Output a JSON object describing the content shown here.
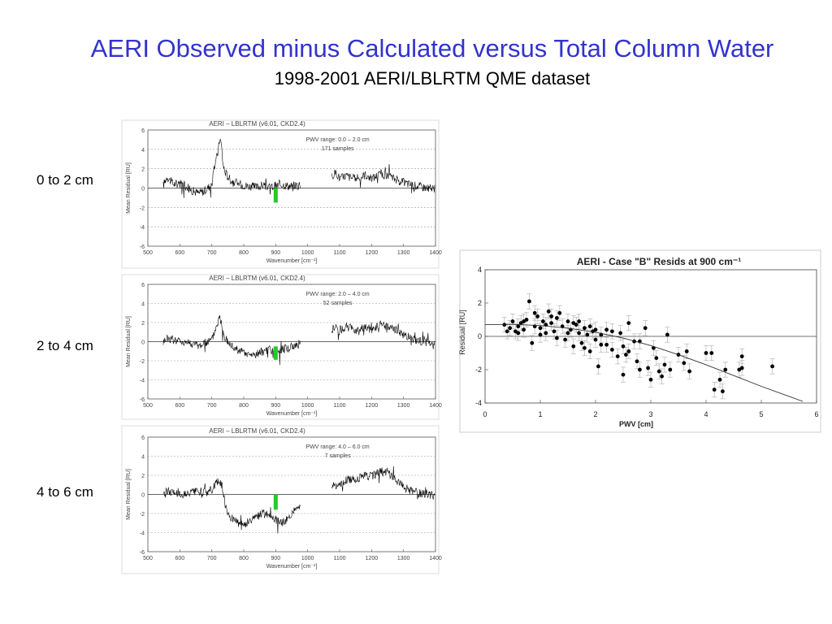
{
  "slide": {
    "title": "AERI Observed minus Calculated versus Total Column Water",
    "subtitle": "1998-2001 AERI/LBLRTM QME dataset"
  },
  "panel_labels": [
    "0 to 2 cm",
    "2 to 4 cm",
    "4 to 6 cm"
  ],
  "colors": {
    "title": "#3333cc",
    "trace": "#000000",
    "grid": "#999999",
    "highlight": "#22cc22"
  },
  "chart_data": [
    {
      "type": "line",
      "title": "AERI – LBLRTM (v6.01, CKD2.4)",
      "annotation": [
        "PWV range: 0.0 – 2.0 cm",
        "171 samples"
      ],
      "xlabel": "Wavenumber [cm⁻¹]",
      "ylabel": "Mean Residual [RU]",
      "xlim": [
        500,
        1400
      ],
      "ylim": [
        -6,
        6
      ],
      "xticks": [
        "500",
        "600",
        "700",
        "800",
        "900",
        "1000",
        "1100",
        "1200",
        "1300",
        "1400"
      ],
      "yticks": [
        "6",
        "4",
        "2",
        "0",
        "-2",
        "-4",
        "-6"
      ],
      "highlight": {
        "x": 900,
        "y_range": [
          -1.5,
          0
        ]
      },
      "grid": "dashed horizontal",
      "series": [
        {
          "x": [
            548,
            560,
            580,
            600,
            620,
            640,
            660,
            680,
            700,
            710,
            720,
            725,
            730,
            735,
            740,
            750,
            760,
            780,
            800,
            820,
            840,
            860,
            880,
            900,
            920,
            940,
            960,
            975,
            1075,
            1090,
            1100,
            1120,
            1150,
            1180,
            1200,
            1230,
            1250,
            1270,
            1290,
            1320,
            1350,
            1380,
            1395
          ],
          "y": [
            0.3,
            1.2,
            0.4,
            0.6,
            0.2,
            -0.3,
            -0.5,
            -0.2,
            0.4,
            2.5,
            3.8,
            5.2,
            4.5,
            2.5,
            1.8,
            1.2,
            0.8,
            0.5,
            0.3,
            0.2,
            0.1,
            0.3,
            0.1,
            0.2,
            0.4,
            0.2,
            0.3,
            0.2,
            1.2,
            1.6,
            1.0,
            1.3,
            0.9,
            1.4,
            1.0,
            1.5,
            1.2,
            1.0,
            0.7,
            0.4,
            0.2,
            0.0,
            -0.1
          ]
        }
      ]
    },
    {
      "type": "line",
      "title": "AERI – LBLRTM (v6.01, CKD2.4)",
      "annotation": [
        "PWV range: 2.0 – 4.0 cm",
        "52 samples"
      ],
      "xlabel": "Wavenumber [cm⁻¹]",
      "ylabel": "Mean Residual [RU]",
      "xlim": [
        500,
        1400
      ],
      "ylim": [
        -6,
        6
      ],
      "xticks": [
        "500",
        "600",
        "700",
        "800",
        "900",
        "1000",
        "1100",
        "1200",
        "1300",
        "1400"
      ],
      "yticks": [
        "6",
        "4",
        "2",
        "0",
        "-2",
        "-4",
        "-6"
      ],
      "highlight": {
        "x": 900,
        "y_range": [
          -1.9,
          -0.5
        ]
      },
      "grid": "dashed horizontal",
      "series": [
        {
          "x": [
            548,
            560,
            580,
            600,
            620,
            640,
            660,
            680,
            700,
            710,
            720,
            725,
            730,
            735,
            740,
            750,
            760,
            780,
            800,
            820,
            840,
            860,
            880,
            900,
            920,
            940,
            960,
            975,
            1075,
            1090,
            1100,
            1120,
            1150,
            1180,
            1200,
            1230,
            1250,
            1270,
            1290,
            1320,
            1350,
            1380,
            1395
          ],
          "y": [
            0.0,
            0.4,
            0.2,
            0.1,
            0.0,
            -0.2,
            -0.4,
            -0.1,
            0.2,
            1.2,
            2.2,
            2.6,
            2.0,
            1.0,
            0.4,
            0.0,
            -0.4,
            -0.8,
            -1.2,
            -1.4,
            -1.3,
            -1.0,
            -0.9,
            -1.2,
            -0.8,
            -0.6,
            -0.4,
            -0.2,
            1.3,
            1.5,
            1.0,
            1.6,
            1.2,
            1.5,
            1.3,
            1.8,
            1.6,
            1.3,
            0.9,
            0.4,
            0.1,
            -0.1,
            -0.2
          ]
        }
      ]
    },
    {
      "type": "line",
      "title": "AERI – LBLRTM (v6.01, CKD2.4)",
      "annotation": [
        "PWV range: 4.0 – 6.0 cm",
        "7 samples"
      ],
      "xlabel": "Wavenumber [cm⁻¹]",
      "ylabel": "Mean Residual [RU]",
      "xlim": [
        500,
        1400
      ],
      "ylim": [
        -6,
        6
      ],
      "xticks": [
        "500",
        "600",
        "700",
        "800",
        "900",
        "1000",
        "1100",
        "1200",
        "1300",
        "1400"
      ],
      "yticks": [
        "6",
        "4",
        "2",
        "0",
        "-2",
        "-4",
        "-6"
      ],
      "highlight": {
        "x": 900,
        "y_range": [
          -1.6,
          0
        ]
      },
      "grid": "dashed horizontal",
      "series": [
        {
          "x": [
            548,
            560,
            580,
            600,
            620,
            640,
            660,
            680,
            700,
            710,
            720,
            725,
            730,
            735,
            740,
            750,
            760,
            780,
            800,
            820,
            840,
            860,
            880,
            900,
            920,
            940,
            960,
            975,
            1075,
            1090,
            1100,
            1120,
            1150,
            1180,
            1200,
            1230,
            1250,
            1270,
            1290,
            1320,
            1350,
            1380,
            1395
          ],
          "y": [
            0.2,
            0.4,
            0.2,
            0.1,
            0.0,
            0.2,
            0.3,
            0.2,
            0.5,
            1.0,
            1.3,
            1.4,
            1.0,
            0.3,
            -0.8,
            -1.8,
            -2.4,
            -3.0,
            -3.2,
            -2.8,
            -2.4,
            -2.0,
            -2.2,
            -2.6,
            -3.0,
            -2.4,
            -1.6,
            -1.2,
            0.8,
            1.0,
            0.9,
            1.5,
            1.6,
            2.0,
            1.9,
            2.4,
            2.3,
            1.7,
            1.1,
            0.4,
            0.1,
            0.0,
            -0.1
          ]
        }
      ]
    },
    {
      "type": "scatter",
      "title": "AERI - Case \"B\" Resids at 900 cm⁻¹",
      "xlabel": "PWV [cm]",
      "ylabel": "Residual [RU]",
      "xlim": [
        0,
        6
      ],
      "ylim": [
        -4,
        4
      ],
      "xticks": [
        "0",
        "1",
        "2",
        "3",
        "4",
        "5",
        "6"
      ],
      "yticks": [
        "4",
        "2",
        "0",
        "-2",
        "-4"
      ],
      "points": [
        [
          0.35,
          0.7
        ],
        [
          0.45,
          0.5
        ],
        [
          0.5,
          0.9
        ],
        [
          0.55,
          0.3
        ],
        [
          0.6,
          0.6
        ],
        [
          0.65,
          0.8
        ],
        [
          0.7,
          0.4
        ],
        [
          0.75,
          1.0
        ],
        [
          0.8,
          2.1
        ],
        [
          0.85,
          -0.4
        ],
        [
          0.9,
          0.6
        ],
        [
          0.95,
          1.2
        ],
        [
          1.0,
          0.5
        ],
        [
          1.05,
          0.9
        ],
        [
          1.1,
          0.2
        ],
        [
          1.15,
          1.5
        ],
        [
          1.2,
          0.8
        ],
        [
          1.25,
          0.3
        ],
        [
          1.3,
          1.1
        ],
        [
          1.35,
          1.4
        ],
        [
          1.4,
          0.6
        ],
        [
          1.45,
          -0.2
        ],
        [
          1.5,
          0.9
        ],
        [
          1.55,
          0.4
        ],
        [
          1.6,
          -0.6
        ],
        [
          1.65,
          0.7
        ],
        [
          1.7,
          0.2
        ],
        [
          1.75,
          -0.4
        ],
        [
          1.8,
          0.5
        ],
        [
          1.85,
          0.1
        ],
        [
          1.9,
          -0.9
        ],
        [
          1.95,
          0.3
        ],
        [
          2.0,
          -0.2
        ],
        [
          2.05,
          -1.8
        ],
        [
          2.1,
          -0.5
        ],
        [
          2.2,
          0.4
        ],
        [
          2.3,
          -0.8
        ],
        [
          2.4,
          -1.2
        ],
        [
          2.45,
          0.2
        ],
        [
          2.5,
          -2.3
        ],
        [
          2.55,
          -1.1
        ],
        [
          2.6,
          0.8
        ],
        [
          2.7,
          -0.3
        ],
        [
          2.75,
          -1.5
        ],
        [
          2.8,
          -2.0
        ],
        [
          2.9,
          0.5
        ],
        [
          2.95,
          -1.9
        ],
        [
          3.0,
          -2.6
        ],
        [
          3.05,
          -0.7
        ],
        [
          3.1,
          -1.3
        ],
        [
          3.15,
          -2.1
        ],
        [
          3.2,
          -2.4
        ],
        [
          3.25,
          -1.7
        ],
        [
          3.3,
          0.1
        ],
        [
          3.35,
          -2.0
        ],
        [
          3.5,
          -1.1
        ],
        [
          3.6,
          -1.6
        ],
        [
          3.65,
          -0.9
        ],
        [
          3.7,
          -2.1
        ],
        [
          4.0,
          -1.0
        ],
        [
          4.1,
          -1.0
        ],
        [
          4.15,
          -3.2
        ],
        [
          4.25,
          -2.6
        ],
        [
          4.3,
          -3.3
        ],
        [
          4.35,
          -2.0
        ],
        [
          4.6,
          -2.0
        ],
        [
          4.65,
          -1.9
        ],
        [
          4.65,
          -1.2
        ],
        [
          5.2,
          -1.8
        ],
        [
          0.4,
          0.3
        ],
        [
          0.6,
          0.2
        ],
        [
          0.7,
          0.9
        ],
        [
          0.9,
          1.4
        ],
        [
          1.0,
          0.1
        ],
        [
          1.1,
          0.7
        ],
        [
          1.2,
          1.2
        ],
        [
          1.3,
          -0.1
        ],
        [
          1.5,
          0.2
        ],
        [
          1.6,
          0.8
        ],
        [
          1.7,
          0.9
        ],
        [
          1.8,
          -0.7
        ],
        [
          1.9,
          0.6
        ],
        [
          2.0,
          0.4
        ],
        [
          2.1,
          0.1
        ],
        [
          2.2,
          -0.5
        ],
        [
          2.3,
          0.3
        ],
        [
          2.5,
          -0.6
        ],
        [
          2.6,
          -0.9
        ],
        [
          2.8,
          -0.3
        ]
      ],
      "error_bar": 0.45,
      "curve": {
        "x": [
          0,
          0.5,
          1,
          1.5,
          2,
          2.5,
          3,
          3.5,
          4,
          4.5,
          5,
          5.5,
          5.75
        ],
        "y": [
          0.7,
          0.72,
          0.65,
          0.5,
          0.25,
          -0.1,
          -0.55,
          -1.1,
          -1.7,
          -2.35,
          -3.0,
          -3.6,
          -3.9
        ]
      },
      "reference_line_y": 0
    }
  ]
}
